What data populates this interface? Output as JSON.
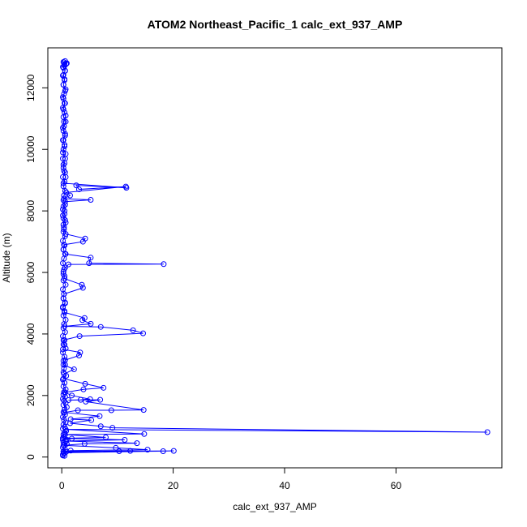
{
  "chart_data": {
    "type": "scatter",
    "title": "ATOM2 Northeast_Pacific_1 calc_ext_937_AMP",
    "xlabel": "calc_ext_937_AMP",
    "ylabel": "Altitude (m)",
    "xlim": [
      -2.5,
      79
    ],
    "ylim": [
      -350,
      13300
    ],
    "x_ticks": [
      0,
      20,
      40,
      60
    ],
    "y_ticks": [
      0,
      2000,
      4000,
      6000,
      8000,
      10000,
      12000
    ],
    "grid": false,
    "legend": "none",
    "connect_points": true,
    "series": [
      {
        "color": "#0000ff",
        "marker": "open-circle",
        "points": [
          [
            0.2,
            50
          ],
          [
            0.4,
            120
          ],
          [
            0.3,
            180
          ],
          [
            0.6,
            240
          ],
          [
            0.2,
            310
          ],
          [
            0.5,
            380
          ],
          [
            0.9,
            430
          ],
          [
            0.3,
            480
          ],
          [
            0.6,
            520
          ],
          [
            0.2,
            560
          ],
          [
            1.8,
            600
          ],
          [
            0.4,
            660
          ],
          [
            0.3,
            730
          ],
          [
            0.5,
            790
          ],
          [
            0.8,
            850
          ],
          [
            0.2,
            920
          ],
          [
            0.5,
            980
          ],
          [
            0.3,
            1050
          ],
          [
            0.7,
            1130
          ],
          [
            0.4,
            1210
          ],
          [
            0.2,
            1300
          ],
          [
            0.6,
            1380
          ],
          [
            0.3,
            1460
          ],
          [
            0.5,
            1540
          ],
          [
            0.9,
            1620
          ],
          [
            0.3,
            1690
          ],
          [
            0.7,
            1760
          ],
          [
            0.4,
            1830
          ],
          [
            0.2,
            1890
          ],
          [
            0.6,
            1960
          ],
          [
            0.3,
            2030
          ],
          [
            0.4,
            2110
          ],
          [
            0.7,
            2200
          ],
          [
            0.3,
            2300
          ],
          [
            0.5,
            2410
          ],
          [
            0.2,
            2520
          ],
          [
            0.8,
            2640
          ],
          [
            0.3,
            2760
          ],
          [
            0.4,
            2880
          ],
          [
            0.6,
            3000
          ],
          [
            0.3,
            3130
          ],
          [
            0.5,
            3260
          ],
          [
            0.2,
            3400
          ],
          [
            0.7,
            3530
          ],
          [
            0.3,
            3660
          ],
          [
            0.5,
            3800
          ],
          [
            0.2,
            3930
          ],
          [
            0.6,
            4060
          ],
          [
            0.3,
            4190
          ],
          [
            0.4,
            4320
          ],
          [
            0.7,
            4460
          ],
          [
            0.3,
            4600
          ],
          [
            0.5,
            4740
          ],
          [
            0.2,
            4880
          ],
          [
            0.6,
            5020
          ],
          [
            0.3,
            5160
          ],
          [
            0.4,
            5300
          ],
          [
            0.2,
            5450
          ],
          [
            0.7,
            5600
          ],
          [
            0.3,
            5740
          ],
          [
            0.5,
            5880
          ],
          [
            0.3,
            6020
          ],
          [
            0.6,
            6160
          ],
          [
            0.2,
            6300
          ],
          [
            0.4,
            6450
          ],
          [
            0.7,
            6600
          ],
          [
            0.3,
            6740
          ],
          [
            0.5,
            6880
          ],
          [
            0.2,
            7030
          ],
          [
            0.6,
            7180
          ],
          [
            0.3,
            7320
          ],
          [
            0.4,
            7470
          ],
          [
            0.7,
            7620
          ],
          [
            0.3,
            7760
          ],
          [
            0.5,
            7900
          ],
          [
            0.2,
            8050
          ],
          [
            0.6,
            8200
          ],
          [
            0.3,
            8350
          ],
          [
            0.4,
            8500
          ],
          [
            0.6,
            8650
          ],
          [
            0.3,
            8800
          ],
          [
            0.5,
            8950
          ],
          [
            0.2,
            9100
          ],
          [
            0.6,
            9250
          ],
          [
            0.3,
            9400
          ],
          [
            0.5,
            9550
          ],
          [
            0.2,
            9700
          ],
          [
            0.7,
            9850
          ],
          [
            0.3,
            10000
          ],
          [
            0.5,
            10150
          ],
          [
            0.2,
            10300
          ],
          [
            0.6,
            10450
          ],
          [
            0.3,
            10600
          ],
          [
            0.4,
            10750
          ],
          [
            0.7,
            10900
          ],
          [
            0.3,
            11050
          ],
          [
            0.5,
            11200
          ],
          [
            0.2,
            11350
          ],
          [
            0.6,
            11500
          ],
          [
            0.3,
            11650
          ],
          [
            0.4,
            11800
          ],
          [
            0.7,
            11950
          ],
          [
            0.3,
            12100
          ],
          [
            0.5,
            12250
          ],
          [
            0.2,
            12400
          ],
          [
            0.6,
            12550
          ],
          [
            0.3,
            12650
          ],
          [
            0.5,
            12720
          ],
          [
            0.8,
            12780
          ],
          [
            0.4,
            12830
          ],
          [
            0.6,
            12870
          ],
          [
            0.3,
            12840
          ],
          [
            0.9,
            12800
          ],
          [
            0.5,
            12760
          ],
          [
            0.2,
            12680
          ],
          [
            0.6,
            12560
          ],
          [
            0.3,
            12420
          ],
          [
            0.5,
            12280
          ],
          [
            0.3,
            12100
          ],
          [
            0.6,
            11900
          ],
          [
            0.2,
            11700
          ],
          [
            0.5,
            11500
          ],
          [
            0.3,
            11300
          ],
          [
            0.7,
            11100
          ],
          [
            0.4,
            10900
          ],
          [
            0.2,
            10700
          ],
          [
            0.6,
            10500
          ],
          [
            0.3,
            10300
          ],
          [
            0.5,
            10100
          ],
          [
            0.2,
            9900
          ],
          [
            0.6,
            9700
          ],
          [
            0.3,
            9500
          ],
          [
            0.4,
            9300
          ],
          [
            0.7,
            9100
          ],
          [
            0.3,
            8900
          ],
          [
            11.6,
            8750
          ],
          [
            2.6,
            8830
          ],
          [
            3.1,
            8700
          ],
          [
            11.5,
            8790
          ],
          [
            0.8,
            8600
          ],
          [
            1.5,
            8500
          ],
          [
            0.4,
            8400
          ],
          [
            5.2,
            8360
          ],
          [
            0.6,
            8300
          ],
          [
            0.3,
            8150
          ],
          [
            0.5,
            8000
          ],
          [
            0.2,
            7850
          ],
          [
            0.6,
            7700
          ],
          [
            0.3,
            7550
          ],
          [
            0.4,
            7400
          ],
          [
            0.7,
            7250
          ],
          [
            4.2,
            7100
          ],
          [
            3.8,
            7000
          ],
          [
            0.4,
            6900
          ],
          [
            0.3,
            6750
          ],
          [
            0.6,
            6600
          ],
          [
            5.2,
            6480
          ],
          [
            4.9,
            6300
          ],
          [
            18.3,
            6270
          ],
          [
            1.2,
            6260
          ],
          [
            0.4,
            6100
          ],
          [
            0.3,
            5950
          ],
          [
            0.5,
            5800
          ],
          [
            3.6,
            5600
          ],
          [
            3.8,
            5500
          ],
          [
            0.4,
            5300
          ],
          [
            0.3,
            5150
          ],
          [
            0.6,
            5000
          ],
          [
            0.2,
            4850
          ],
          [
            0.5,
            4700
          ],
          [
            4.1,
            4520
          ],
          [
            3.7,
            4450
          ],
          [
            5.2,
            4330
          ],
          [
            0.5,
            4250
          ],
          [
            7.0,
            4230
          ],
          [
            12.8,
            4120
          ],
          [
            14.6,
            4020
          ],
          [
            3.2,
            3930
          ],
          [
            0.3,
            3800
          ],
          [
            0.5,
            3650
          ],
          [
            0.2,
            3500
          ],
          [
            3.3,
            3400
          ],
          [
            3.1,
            3300
          ],
          [
            0.6,
            3150
          ],
          [
            0.3,
            3000
          ],
          [
            2.2,
            2850
          ],
          [
            0.4,
            2700
          ],
          [
            0.3,
            2550
          ],
          [
            4.2,
            2380
          ],
          [
            7.5,
            2250
          ],
          [
            3.9,
            2200
          ],
          [
            0.6,
            2100
          ],
          [
            1.8,
            2000
          ],
          [
            5.1,
            1880
          ],
          [
            3.4,
            1860
          ],
          [
            1.2,
            1850
          ],
          [
            6.9,
            1860
          ],
          [
            4.3,
            1800
          ],
          [
            14.7,
            1530
          ],
          [
            8.9,
            1520
          ],
          [
            2.9,
            1520
          ],
          [
            0.5,
            1450
          ],
          [
            6.8,
            1330
          ],
          [
            1.6,
            1230
          ],
          [
            5.3,
            1200
          ],
          [
            1.5,
            1100
          ],
          [
            7.0,
            1000
          ],
          [
            9.1,
            950
          ],
          [
            76.4,
            810
          ],
          [
            0.7,
            900
          ],
          [
            14.8,
            750
          ],
          [
            0.6,
            730
          ],
          [
            7.9,
            640
          ],
          [
            0.2,
            610
          ],
          [
            11.3,
            560
          ],
          [
            0.8,
            520
          ],
          [
            13.5,
            450
          ],
          [
            4.1,
            430
          ],
          [
            0.3,
            380
          ],
          [
            9.7,
            300
          ],
          [
            15.4,
            240
          ],
          [
            1.6,
            210
          ],
          [
            0.3,
            180
          ],
          [
            12.3,
            200
          ],
          [
            18.2,
            190
          ],
          [
            0.8,
            170
          ],
          [
            10.3,
            190
          ],
          [
            20.1,
            200
          ],
          [
            0.4,
            140
          ],
          [
            0.2,
            80
          ],
          [
            0.5,
            40
          ]
        ]
      }
    ]
  }
}
